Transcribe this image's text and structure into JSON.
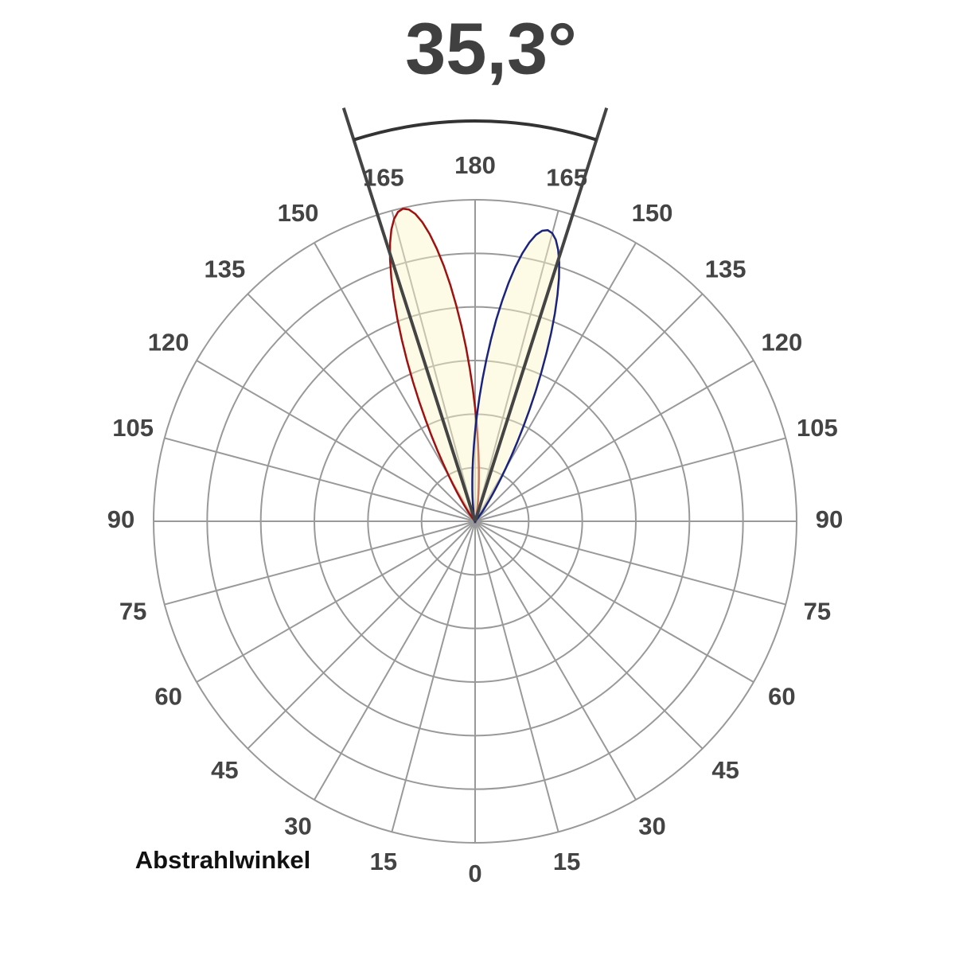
{
  "title": "35,3°",
  "caption": "Abstrahlwinkel",
  "left_angle_labels": [
    0,
    15,
    30,
    45,
    60,
    75,
    90,
    105,
    120,
    135,
    150,
    165,
    180
  ],
  "right_angle_labels": [
    15,
    30,
    45,
    60,
    75,
    90,
    105,
    120,
    135,
    150,
    165
  ]
}
